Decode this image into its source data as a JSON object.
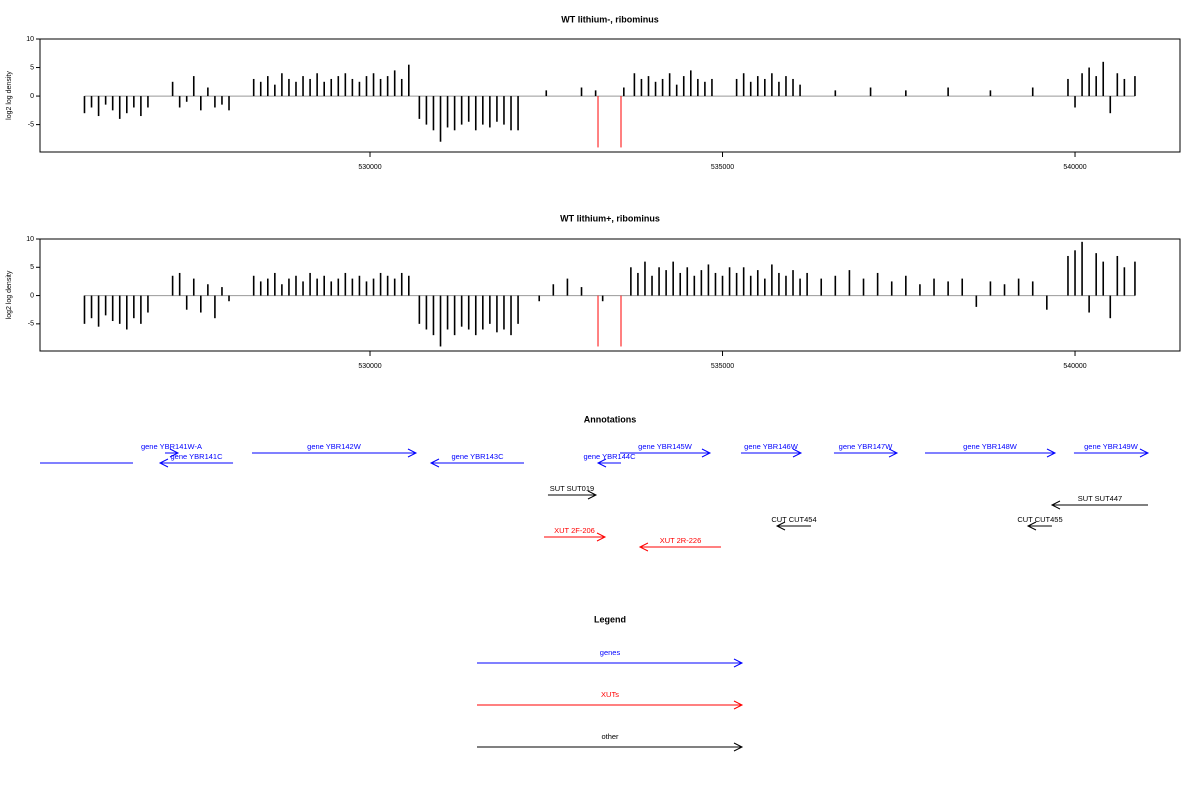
{
  "chart_data": [
    {
      "type": "bar",
      "title": "WT lithium-, ribominus",
      "ylabel": "log2 log density",
      "color": "#000000",
      "xlim": [
        525319,
        541489
      ],
      "xticks": [
        530000,
        535000,
        540000
      ],
      "ylim": [
        -9.8,
        10
      ],
      "yticks": [
        -5,
        0,
        5,
        10
      ],
      "x": [
        525950,
        526050,
        526150,
        526250,
        526350,
        526450,
        526550,
        526650,
        526750,
        526850,
        527200,
        527300,
        527400,
        527500,
        527600,
        527700,
        527800,
        527900,
        528000,
        528350,
        528450,
        528550,
        528650,
        528750,
        528850,
        528950,
        529050,
        529150,
        529250,
        529350,
        529450,
        529550,
        529650,
        529750,
        529850,
        529950,
        530050,
        530150,
        530250,
        530350,
        530450,
        530550,
        530700,
        530800,
        530900,
        531000,
        531100,
        531200,
        531300,
        531400,
        531500,
        531600,
        531700,
        531800,
        531900,
        532000,
        532100,
        532500,
        533000,
        533200,
        533600,
        533750,
        533850,
        533950,
        534050,
        534150,
        534250,
        534350,
        534450,
        534550,
        534650,
        534750,
        534850,
        535200,
        535300,
        535400,
        535500,
        535600,
        535700,
        535800,
        535900,
        536000,
        536100,
        536600,
        537100,
        537600,
        538200,
        538800,
        539400,
        539900,
        540000,
        540100,
        540200,
        540300,
        540400,
        540500,
        540600,
        540700,
        540850
      ],
      "values": [
        -3,
        -2,
        -3.5,
        -1.5,
        -2.5,
        -4,
        -3,
        -2,
        -3.5,
        -2,
        2.5,
        -2,
        -1,
        3.5,
        -2.5,
        1.5,
        -2,
        -1.5,
        -2.5,
        3,
        2.5,
        3.5,
        2,
        4,
        3,
        2.5,
        3.5,
        3,
        4,
        2.5,
        3,
        3.5,
        4,
        3,
        2.5,
        3.5,
        4,
        3,
        3.5,
        4.5,
        3,
        5.5,
        -4,
        -5,
        -6,
        -8,
        -5.5,
        -6,
        -5,
        -4.5,
        -6,
        -5,
        -5.5,
        -4.5,
        -5,
        -6,
        -6,
        1,
        1.5,
        1,
        1.5,
        4,
        3,
        3.5,
        2.5,
        3,
        4,
        2,
        3.5,
        4.5,
        3,
        2.5,
        3,
        3,
        4,
        2.5,
        3.5,
        3,
        4,
        2.5,
        3.5,
        3,
        2,
        1,
        1.5,
        1,
        1.5,
        1,
        1.5,
        3,
        -2,
        4,
        5,
        3.5,
        6,
        -3,
        4,
        3,
        3.5
      ],
      "markers": {
        "color": "#ff0000",
        "x": [
          533234,
          533560
        ],
        "values": [
          -9,
          -9
        ]
      }
    },
    {
      "type": "bar",
      "title": "WT lithium+, ribominus",
      "ylabel": "log2 log density",
      "color": "#000000",
      "xlim": [
        525319,
        541489
      ],
      "xticks": [
        530000,
        535000,
        540000
      ],
      "ylim": [
        -9.8,
        10
      ],
      "yticks": [
        -5,
        0,
        5,
        10
      ],
      "x": [
        525950,
        526050,
        526150,
        526250,
        526350,
        526450,
        526550,
        526650,
        526750,
        526850,
        527200,
        527300,
        527400,
        527500,
        527600,
        527700,
        527800,
        527900,
        528000,
        528350,
        528450,
        528550,
        528650,
        528750,
        528850,
        528950,
        529050,
        529150,
        529250,
        529350,
        529450,
        529550,
        529650,
        529750,
        529850,
        529950,
        530050,
        530150,
        530250,
        530350,
        530450,
        530550,
        530700,
        530800,
        530900,
        531000,
        531100,
        531200,
        531300,
        531400,
        531500,
        531600,
        531700,
        531800,
        531900,
        532000,
        532100,
        532400,
        532600,
        532800,
        533000,
        533300,
        533700,
        533800,
        533900,
        534000,
        534100,
        534200,
        534300,
        534400,
        534500,
        534600,
        534700,
        534800,
        534900,
        535000,
        535100,
        535200,
        535300,
        535400,
        535500,
        535600,
        535700,
        535800,
        535900,
        536000,
        536100,
        536200,
        536400,
        536600,
        536800,
        537000,
        537200,
        537400,
        537600,
        537800,
        538000,
        538200,
        538400,
        538600,
        538800,
        539000,
        539200,
        539400,
        539600,
        539900,
        540000,
        540100,
        540200,
        540300,
        540400,
        540500,
        540600,
        540700,
        540850
      ],
      "values": [
        -5,
        -4,
        -5.5,
        -3.5,
        -4.5,
        -5,
        -6,
        -4,
        -5,
        -3,
        3.5,
        4,
        -2.5,
        3,
        -3,
        2,
        -4,
        1.5,
        -1,
        3.5,
        2.5,
        3,
        4,
        2,
        3,
        3.5,
        2.5,
        4,
        3,
        3.5,
        2.5,
        3,
        4,
        3,
        3.5,
        2.5,
        3,
        4,
        3.5,
        3,
        4,
        3.5,
        -5,
        -6,
        -7,
        -9,
        -6,
        -7,
        -5.5,
        -6,
        -7,
        -6,
        -5,
        -6.5,
        -6,
        -7,
        -5,
        -1,
        2,
        3,
        1.5,
        -1,
        5,
        4,
        6,
        3.5,
        5,
        4.5,
        6,
        4,
        5,
        3.5,
        4.5,
        5.5,
        4,
        3.5,
        5,
        4,
        5,
        3.5,
        4.5,
        3,
        5.5,
        4,
        3.5,
        4.5,
        3,
        4,
        3,
        3.5,
        4.5,
        3,
        4,
        2.5,
        3.5,
        2,
        3,
        2.5,
        3,
        -2,
        2.5,
        2,
        3,
        2.5,
        -2.5,
        7,
        8,
        9.5,
        -3,
        7.5,
        6,
        -4,
        7,
        5,
        6
      ],
      "markers": {
        "color": "#ff0000",
        "x": [
          533234,
          533560
        ],
        "values": [
          -9,
          -9
        ]
      }
    }
  ],
  "annotations": {
    "title": "Annotations",
    "features": [
      {
        "start": 525319,
        "end": 526638,
        "strand": "-",
        "color": "#0000ff"
      },
      {
        "label": "gene YBR141W-A",
        "start": 527092,
        "end": 527276,
        "strand": "+",
        "color": "#0000ff"
      },
      {
        "label": "gene YBR141C",
        "start": 527021,
        "end": 528057,
        "strand": "-",
        "color": "#0000ff"
      },
      {
        "label": "gene YBR142W",
        "start": 528326,
        "end": 530652,
        "strand": "+",
        "color": "#0000ff"
      },
      {
        "label": "gene YBR143C",
        "start": 530865,
        "end": 532184,
        "strand": "-",
        "color": "#0000ff"
      },
      {
        "label": "gene YBR144C",
        "start": 533234,
        "end": 533560,
        "strand": "-",
        "color": "#0000ff"
      },
      {
        "label": "gene YBR145W",
        "start": 533546,
        "end": 534822,
        "strand": "+",
        "color": "#0000ff"
      },
      {
        "label": "gene YBR146W",
        "start": 535262,
        "end": 536113,
        "strand": "+",
        "color": "#0000ff"
      },
      {
        "label": "gene YBR147W",
        "start": 536581,
        "end": 537475,
        "strand": "+",
        "color": "#0000ff"
      },
      {
        "label": "gene YBR148W",
        "start": 537872,
        "end": 539716,
        "strand": "+",
        "color": "#0000ff"
      },
      {
        "label": "gene YBR149W",
        "start": 539985,
        "end": 541035,
        "strand": "+",
        "color": "#0000ff"
      },
      {
        "label": "SUT SUT019",
        "start": 532524,
        "end": 533205,
        "strand": "+",
        "color": "#000000"
      },
      {
        "label": "SUT SUT447",
        "start": 539673,
        "end": 541035,
        "strand": "-",
        "color": "#000000"
      },
      {
        "label": "CUT CUT454",
        "start": 535773,
        "end": 536255,
        "strand": "-",
        "color": "#000000"
      },
      {
        "label": "CUT CUT455",
        "start": 539333,
        "end": 539673,
        "strand": "-",
        "color": "#000000"
      },
      {
        "label": "XUT 2F-206",
        "start": 532468,
        "end": 533333,
        "strand": "+",
        "color": "#ff0000"
      },
      {
        "label": "XUT 2R-226",
        "start": 533829,
        "end": 534978,
        "strand": "-",
        "color": "#ff0000"
      }
    ]
  },
  "legend": {
    "title": "Legend",
    "items": [
      {
        "label": "genes",
        "color": "#0000ff"
      },
      {
        "label": "XUTs",
        "color": "#ff0000"
      },
      {
        "label": "other",
        "color": "#000000"
      }
    ]
  }
}
